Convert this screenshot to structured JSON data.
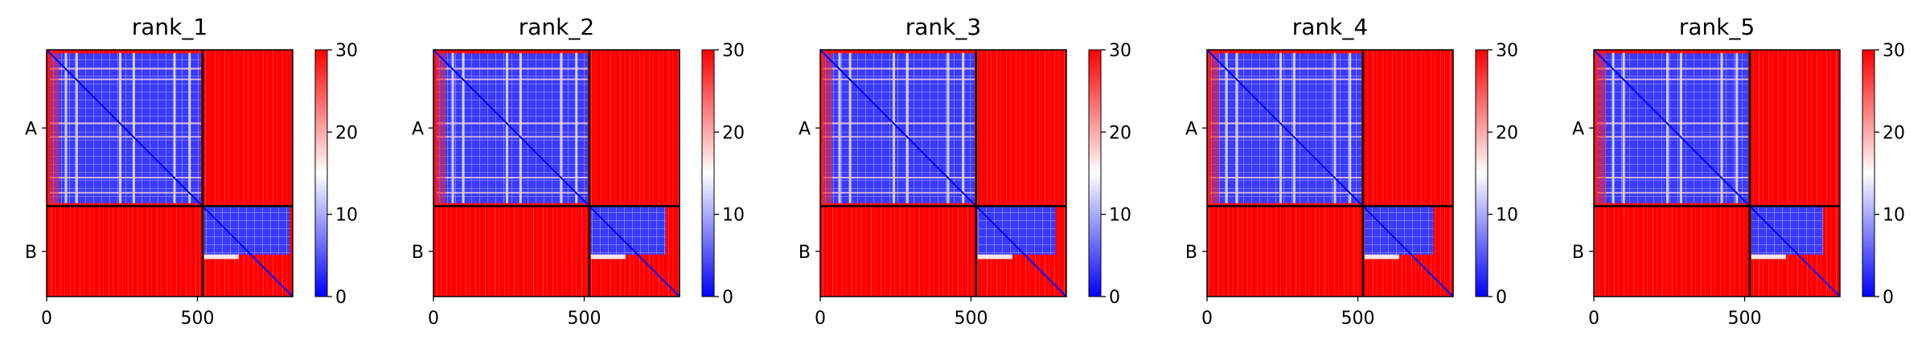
{
  "chart_data": {
    "type": "heatmap",
    "colormap": {
      "name": "bwr",
      "min": 0,
      "max": 30,
      "ticks": [
        0,
        10,
        20,
        30
      ],
      "low_color": "#0000ff",
      "mid_color": "#ffffff",
      "high_color": "#ff0000"
    },
    "x_ticks": [
      0,
      500
    ],
    "x_range": [
      0,
      816
    ],
    "chains": [
      {
        "label": "A",
        "start": 0,
        "end": 517
      },
      {
        "label": "B",
        "start": 517,
        "end": 816
      }
    ],
    "panels": [
      {
        "title": "rank_1",
        "b_block_end": 816
      },
      {
        "title": "rank_2",
        "b_block_end": 780
      },
      {
        "title": "rank_3",
        "b_block_end": 790
      },
      {
        "title": "rank_4",
        "b_block_end": 760
      },
      {
        "title": "rank_5",
        "b_block_end": 770
      }
    ]
  }
}
